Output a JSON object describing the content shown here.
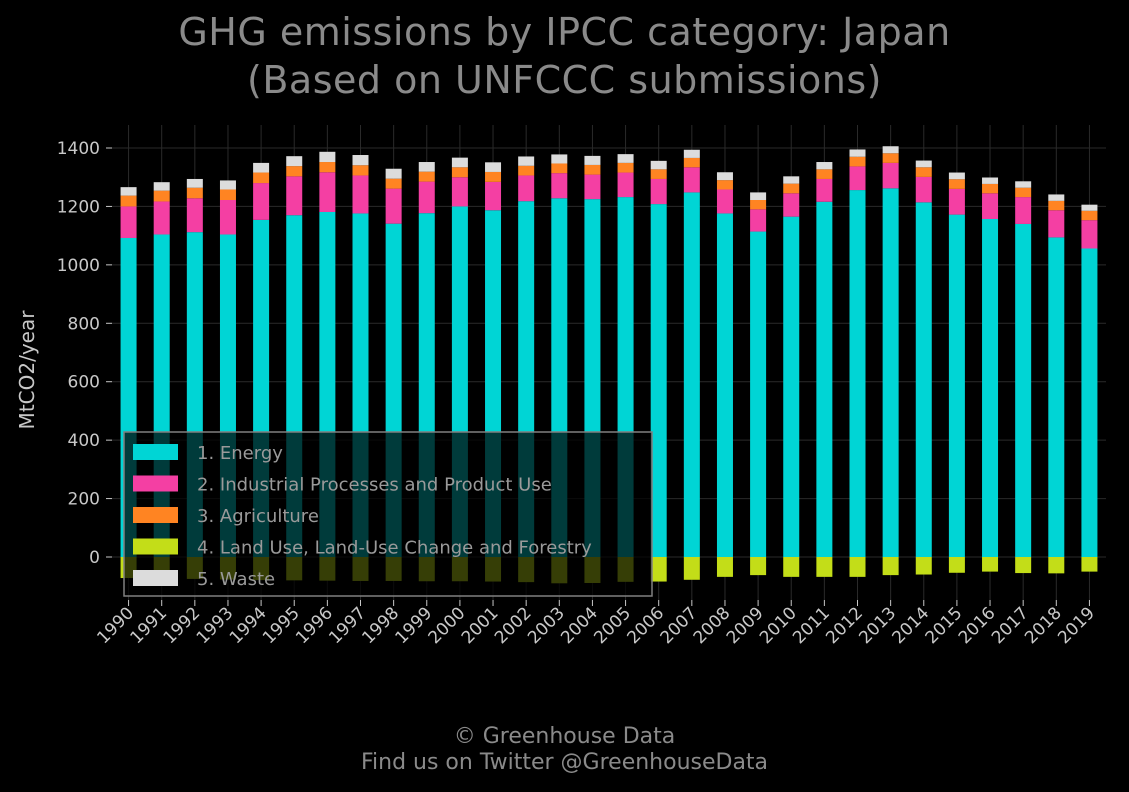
{
  "title_line1": "GHG emissions by IPCC category: Japan",
  "title_line2": "(Based on UNFCCC submissions)",
  "footer_line1": "© Greenhouse Data",
  "footer_line2": "Find us on Twitter @GreenhouseData",
  "colors": {
    "background": "#000000",
    "grid": "#2a2a2a",
    "text": "#c8c8c8",
    "legend_text": "#9a9a9a",
    "legend_border": "#808080",
    "energy": "#00d5d5",
    "ippu": "#f43fa3",
    "agriculture": "#ff8422",
    "lulucf": "#c3dd18",
    "waste": "#dcdcdc"
  },
  "chart_data": {
    "type": "bar",
    "stacked": true,
    "title": "GHG emissions by IPCC category: Japan (Based on UNFCCC submissions)",
    "xlabel": "",
    "ylabel": "MtCO2/year",
    "ylim": [
      -120,
      1480
    ],
    "yticks": [
      0,
      200,
      400,
      600,
      800,
      1000,
      1200,
      1400
    ],
    "grid": true,
    "legend_position": "lower-left",
    "categories": [
      "1990",
      "1991",
      "1992",
      "1993",
      "1994",
      "1995",
      "1996",
      "1997",
      "1998",
      "1999",
      "2000",
      "2001",
      "2002",
      "2003",
      "2004",
      "2005",
      "2006",
      "2007",
      "2008",
      "2009",
      "2010",
      "2011",
      "2012",
      "2013",
      "2014",
      "2015",
      "2016",
      "2017",
      "2018",
      "2019"
    ],
    "series": [
      {
        "name": "1. Energy",
        "color_key": "energy",
        "values": [
          1092,
          1104,
          1112,
          1104,
          1154,
          1170,
          1181,
          1176,
          1141,
          1177,
          1200,
          1187,
          1218,
          1228,
          1225,
          1232,
          1208,
          1248,
          1176,
          1114,
          1165,
          1216,
          1256,
          1262,
          1214,
          1172,
          1157,
          1140,
          1094,
          1056
        ]
      },
      {
        "name": "2. Industrial Processes and Product Use",
        "color_key": "ippu",
        "values": [
          108,
          113,
          116,
          118,
          126,
          133,
          136,
          130,
          120,
          108,
          100,
          97,
          88,
          86,
          84,
          84,
          86,
          86,
          82,
          76,
          80,
          78,
          81,
          87,
          87,
          88,
          88,
          92,
          93,
          97
        ]
      },
      {
        "name": "3. Agriculture",
        "color_key": "agriculture",
        "values": [
          37,
          37,
          36,
          36,
          36,
          35,
          35,
          35,
          34,
          34,
          34,
          34,
          33,
          33,
          33,
          33,
          33,
          32,
          32,
          32,
          33,
          33,
          33,
          33,
          33,
          33,
          32,
          32,
          32,
          32
        ]
      },
      {
        "name": "4. Land Use, Land-Use Change and Forestry",
        "color_key": "lulucf",
        "values": [
          -72,
          -74,
          -75,
          -77,
          -79,
          -80,
          -81,
          -82,
          -82,
          -83,
          -83,
          -84,
          -86,
          -90,
          -89,
          -85,
          -84,
          -78,
          -68,
          -62,
          -68,
          -68,
          -68,
          -62,
          -60,
          -54,
          -50,
          -55,
          -56,
          -50
        ]
      },
      {
        "name": "5. Waste",
        "color_key": "waste",
        "values": [
          29,
          29,
          30,
          31,
          33,
          34,
          35,
          35,
          34,
          33,
          33,
          33,
          32,
          31,
          31,
          30,
          29,
          28,
          27,
          26,
          25,
          25,
          25,
          24,
          23,
          23,
          22,
          22,
          22,
          21
        ]
      }
    ]
  }
}
